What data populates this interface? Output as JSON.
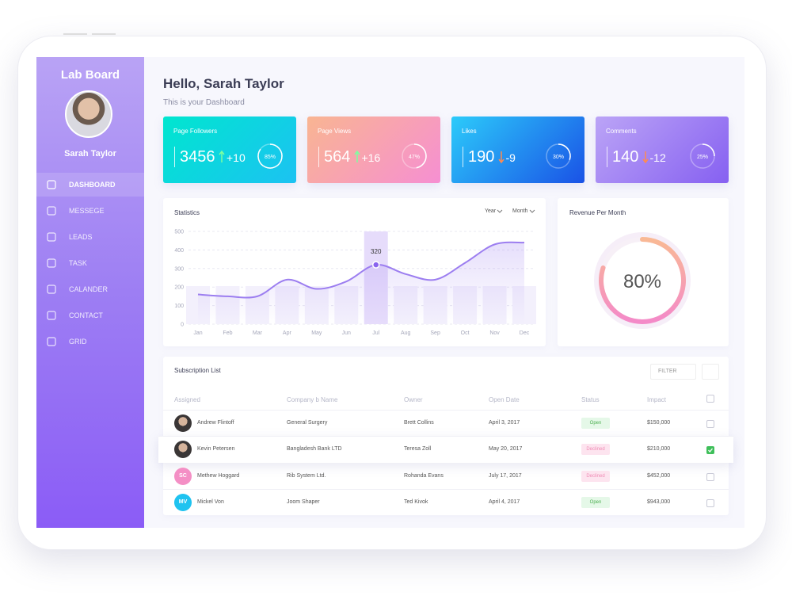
{
  "sidebar": {
    "brand": "Lab Board",
    "user": "Sarah Taylor",
    "menu": [
      "DASHBOARD",
      "MESSEGE",
      "LEADS",
      "TASK",
      "CALANDER",
      "CONTACT",
      "GRID"
    ]
  },
  "header": {
    "title": "Hello, Sarah Taylor",
    "subtitle": "This is your Dashboard"
  },
  "cards": [
    {
      "title": "Page Followers",
      "value": "3456",
      "change": "+10",
      "trend": "up",
      "progress": {
        "value": 85,
        "label": "85%"
      },
      "colors": [
        "#00e6cf",
        "#1cc2f2"
      ]
    },
    {
      "title": "Page Views",
      "value": "564",
      "change": "+16",
      "trend": "up",
      "progress": {
        "value": 47,
        "label": "47%"
      },
      "colors": [
        "#f9b592",
        "#f68fd2"
      ]
    },
    {
      "title": "Likes",
      "value": "190",
      "change": "-9",
      "trend": "down",
      "progress": {
        "value": 30,
        "label": "30%"
      },
      "colors": [
        "#2ccbfa",
        "#1a52e6"
      ]
    },
    {
      "title": "Comments",
      "value": "140",
      "change": "-12",
      "trend": "down",
      "progress": {
        "value": 25,
        "label": "25%"
      },
      "colors": [
        "#bba4f6",
        "#8660f1"
      ]
    }
  ],
  "statistics": {
    "type": "line",
    "title": "Statistics",
    "filters": [
      "Year",
      "Month"
    ],
    "categories": [
      "Jan",
      "Feb",
      "Mar",
      "Apr",
      "May",
      "Jun",
      "Jul",
      "Aug",
      "Sep",
      "Oct",
      "Nov",
      "Dec"
    ],
    "values": [
      160,
      150,
      150,
      240,
      190,
      230,
      320,
      270,
      240,
      330,
      430,
      440
    ],
    "highlight": 6,
    "ylim": [
      0,
      500
    ],
    "yticks": [
      0,
      100,
      200,
      300,
      400,
      500
    ],
    "grid": true,
    "color": "#9c7ef0"
  },
  "revenue": {
    "title": "Revenue Per Month",
    "value": 80,
    "value_label": "80%"
  },
  "subscriptions": {
    "title": "Subscription List",
    "filter": "FILTER",
    "columns": [
      "Assigned",
      "Company b Name",
      "Owner",
      "Open Date",
      "Status",
      "Impact"
    ],
    "rows": [
      {
        "name": "Andrew Flintoff",
        "company": "General Surgery",
        "owner": "Brett Collins",
        "date": "April 3, 2017",
        "status": "Open",
        "impact": "$150,000",
        "checked": false
      },
      {
        "name": "Kevin Petersen",
        "company": "Bangladesh Bank LTD",
        "owner": "Teresa Zoll",
        "date": "May 20, 2017",
        "status": "Declined",
        "impact": "$210,000",
        "checked": true
      },
      {
        "initials": "SC",
        "avatar": "#f48fc5",
        "name": "Methew Hoggard",
        "company": "Rib System Ltd.",
        "owner": "Rohanda Evans",
        "date": "July 17, 2017",
        "status": "Declined",
        "impact": "$452,000",
        "checked": false
      },
      {
        "initials": "MV",
        "avatar": "#1fc3f0",
        "name": "Mickel Von",
        "company": "Joom Shaper",
        "owner": "Ted Kivok",
        "date": "April 4, 2017",
        "status": "Open",
        "impact": "$943,000",
        "checked": false
      }
    ]
  }
}
